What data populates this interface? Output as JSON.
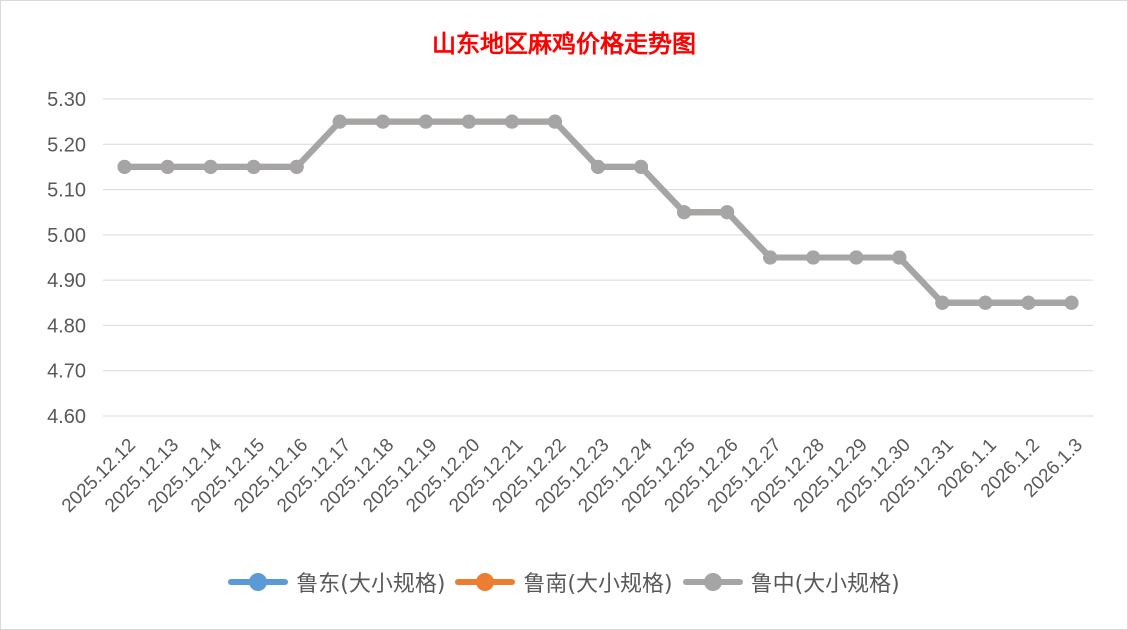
{
  "colors": {
    "title": "#ff0000",
    "grid": "#d9d9d9",
    "axis_text": "#595959",
    "background": "#ffffff"
  },
  "chart_data": {
    "type": "line",
    "title": "山东地区麻鸡价格走势图",
    "categories": [
      "2025.12.12",
      "2025.12.13",
      "2025.12.14",
      "2025.12.15",
      "2025.12.16",
      "2025.12.17",
      "2025.12.18",
      "2025.12.19",
      "2025.12.20",
      "2025.12.21",
      "2025.12.22",
      "2025.12.23",
      "2025.12.24",
      "2025.12.25",
      "2025.12.26",
      "2025.12.27",
      "2025.12.28",
      "2025.12.29",
      "2025.12.30",
      "2025.12.31",
      "2026.1.1",
      "2026.1.2",
      "2026.1.3"
    ],
    "series": [
      {
        "name": "鲁东(大小规格)",
        "color": "#5b9bd5",
        "values": [
          5.15,
          5.15,
          5.15,
          5.15,
          5.15,
          5.25,
          5.25,
          5.25,
          5.25,
          5.25,
          5.25,
          5.15,
          5.15,
          5.05,
          5.05,
          4.95,
          4.95,
          4.95,
          4.95,
          4.85,
          4.85,
          4.85,
          4.85
        ]
      },
      {
        "name": "鲁南(大小规格)",
        "color": "#ed7d31",
        "values": [
          5.15,
          5.15,
          5.15,
          5.15,
          5.15,
          5.25,
          5.25,
          5.25,
          5.25,
          5.25,
          5.25,
          5.15,
          5.15,
          5.05,
          5.05,
          4.95,
          4.95,
          4.95,
          4.95,
          4.85,
          4.85,
          4.85,
          4.85
        ]
      },
      {
        "name": "鲁中(大小规格)",
        "color": "#a5a5a5",
        "values": [
          5.15,
          5.15,
          5.15,
          5.15,
          5.15,
          5.25,
          5.25,
          5.25,
          5.25,
          5.25,
          5.25,
          5.15,
          5.15,
          5.05,
          5.05,
          4.95,
          4.95,
          4.95,
          4.95,
          4.85,
          4.85,
          4.85,
          4.85
        ]
      }
    ],
    "yticks": [
      "4.60",
      "4.70",
      "4.80",
      "4.90",
      "5.00",
      "5.10",
      "5.20",
      "5.30"
    ],
    "ylim": [
      4.6,
      5.3
    ],
    "grid": true,
    "legend_position": "bottom"
  }
}
